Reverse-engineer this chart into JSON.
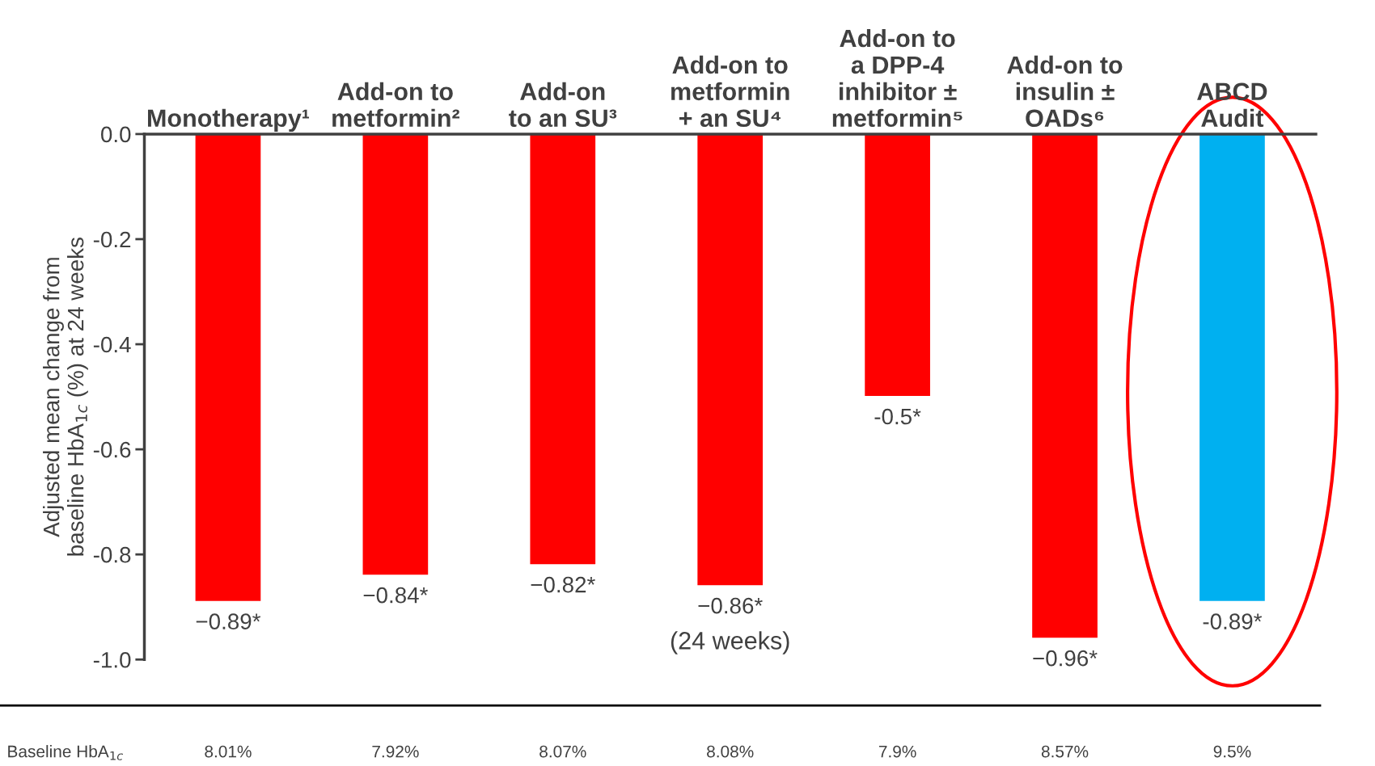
{
  "chart_data": {
    "type": "bar",
    "categories": [
      "Monotherapy¹",
      "Add-on to\nmetformin²",
      "Add-on\nto an SU³",
      "Add-on to\nmetformin\n+ an SU⁴",
      "Add-on to\na DPP-4\ninhibitor ±\nmetformin⁵",
      "Add-on to\ninsulin ±\nOADs⁶",
      "ABCD\nAudit"
    ],
    "values": [
      -0.89,
      -0.84,
      -0.82,
      -0.86,
      -0.5,
      -0.96,
      -0.89
    ],
    "colors": [
      "#ff0000",
      "#ff0000",
      "#ff0000",
      "#ff0000",
      "#ff0000",
      "#ff0000",
      "#00b0f0"
    ],
    "value_labels": [
      "−0.89*",
      "−0.84*",
      "−0.82*",
      "−0.86*",
      "-0.5*",
      "−0.96*",
      "-0.89*"
    ],
    "ylabel": "Adjusted mean change from\nbaseline HbA$_{1c}$ (%) at 24 weeks",
    "ylim": [
      -1.0,
      0.0
    ],
    "yticks": [
      {
        "value": 0.0,
        "label": "0.0"
      },
      {
        "value": -0.2,
        "label": "-0.2"
      },
      {
        "value": -0.4,
        "label": "-0.4"
      },
      {
        "value": -0.6,
        "label": "-0.6"
      },
      {
        "value": -0.8,
        "label": "-0.8"
      },
      {
        "value": -1.0,
        "label": "-1.0"
      }
    ],
    "grid": false,
    "legend": false,
    "annotations": [
      "(24 weeks)",
      "Baseline HbA$_{1c}$",
      "8.01%",
      "7.92%",
      "8.07%",
      "8.08%",
      "7.9%",
      "8.57%",
      "9.5%"
    ]
  }
}
